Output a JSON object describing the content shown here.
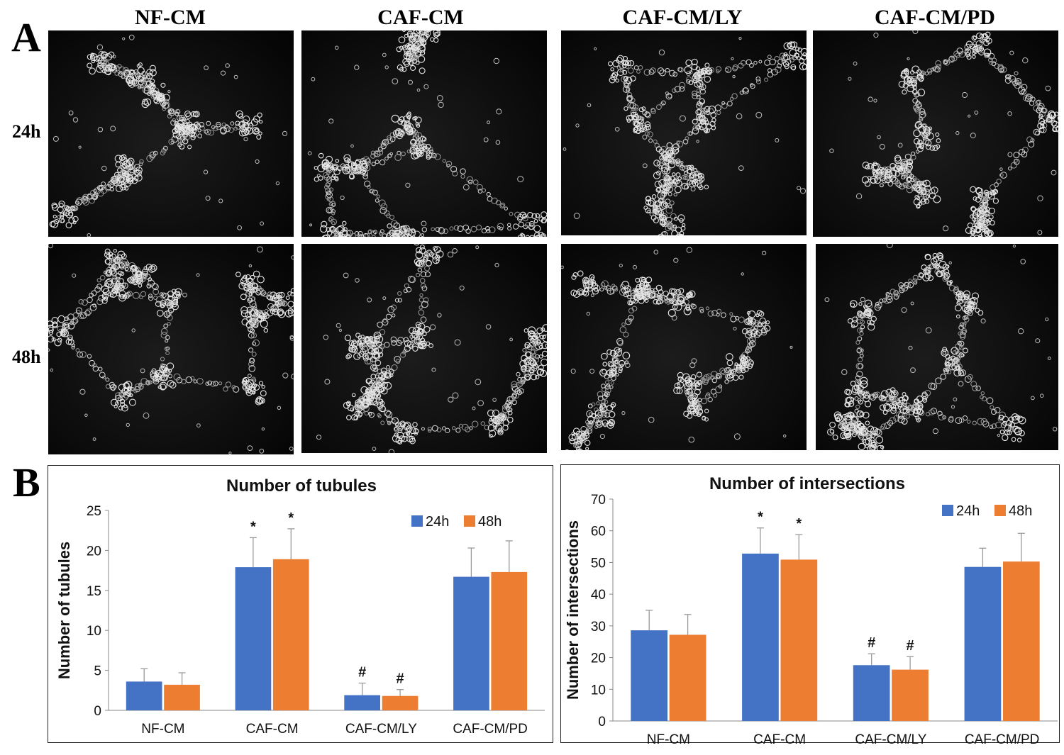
{
  "figure": {
    "panel_a_label": "A",
    "panel_b_label": "B",
    "columns": [
      "NF-CM",
      "CAF-CM",
      "CAF-CM/LY",
      "CAF-CM/PD"
    ],
    "rows": [
      "24h",
      "48h"
    ]
  },
  "chart_data": [
    {
      "type": "bar",
      "title": "Number of tubules",
      "xlabel": "",
      "ylabel": "Number of tubules",
      "categories": [
        "NF-CM",
        "CAF-CM",
        "CAF-CM/LY",
        "CAF-CM/PD"
      ],
      "ylim": [
        0,
        25
      ],
      "yticks": [
        0,
        5,
        10,
        15,
        20,
        25
      ],
      "legend_position": "top-right",
      "series": [
        {
          "name": "24h",
          "color": "#4472C4",
          "values": [
            3.6,
            17.9,
            1.9,
            16.7
          ],
          "errors": [
            1.6,
            3.7,
            1.5,
            3.6
          ],
          "marks": [
            "",
            "*",
            "#",
            ""
          ]
        },
        {
          "name": "48h",
          "color": "#ED7D31",
          "values": [
            3.2,
            18.9,
            1.8,
            17.3
          ],
          "errors": [
            1.5,
            3.8,
            0.8,
            3.9
          ],
          "marks": [
            "",
            "*",
            "#",
            ""
          ]
        }
      ]
    },
    {
      "type": "bar",
      "title": "Number of intersections",
      "xlabel": "",
      "ylabel": "Number of intersections",
      "categories": [
        "NF-CM",
        "CAF-CM",
        "CAF-CM/LY",
        "CAF-CM/PD"
      ],
      "ylim": [
        0,
        70
      ],
      "yticks": [
        0,
        10,
        20,
        30,
        40,
        50,
        60,
        70
      ],
      "legend_position": "top-right",
      "series": [
        {
          "name": "24h",
          "color": "#4472C4",
          "values": [
            28.6,
            52.8,
            17.6,
            48.6
          ],
          "errors": [
            6.3,
            8.1,
            3.6,
            5.9
          ],
          "marks": [
            "",
            "*",
            "#",
            ""
          ]
        },
        {
          "name": "48h",
          "color": "#ED7D31",
          "values": [
            27.2,
            50.9,
            16.2,
            50.3
          ],
          "errors": [
            6.4,
            7.9,
            4.1,
            8.9
          ],
          "marks": [
            "",
            "*",
            "#",
            ""
          ]
        }
      ]
    }
  ]
}
